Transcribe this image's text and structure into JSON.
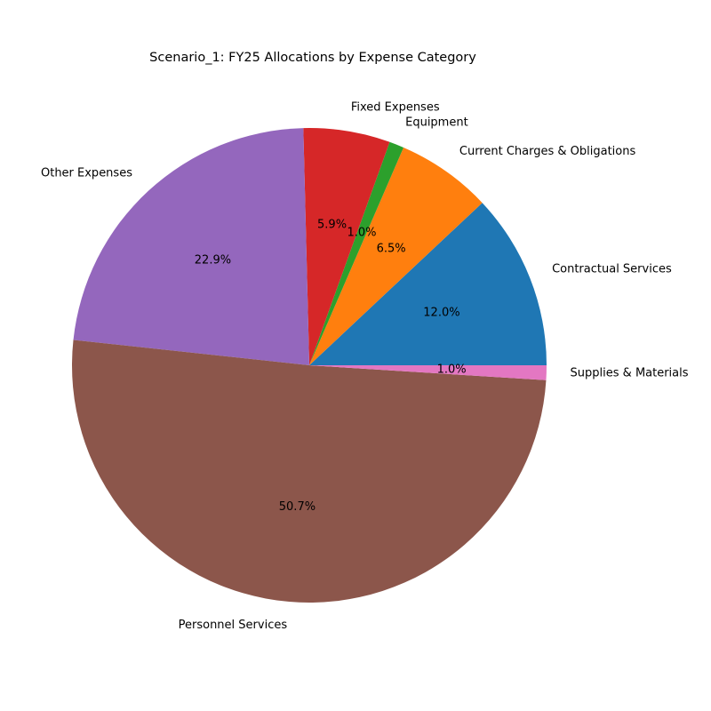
{
  "chart_data": {
    "type": "pie",
    "title": "Scenario_1: FY25 Allocations by Expense Category",
    "slices": [
      {
        "label": "Contractual Services",
        "value": 12.0,
        "pct_label": "12.0%",
        "color": "#1f77b4"
      },
      {
        "label": "Current Charges & Obligations",
        "value": 6.5,
        "pct_label": "6.5%",
        "color": "#ff7f0e"
      },
      {
        "label": "Equipment",
        "value": 1.0,
        "pct_label": "1.0%",
        "color": "#2ca02c"
      },
      {
        "label": "Fixed Expenses",
        "value": 5.9,
        "pct_label": "5.9%",
        "color": "#d62728"
      },
      {
        "label": "Other Expenses",
        "value": 22.9,
        "pct_label": "22.9%",
        "color": "#9467bd"
      },
      {
        "label": "Personnel Services",
        "value": 50.7,
        "pct_label": "50.7%",
        "color": "#8c564b"
      },
      {
        "label": "Supplies & Materials",
        "value": 1.0,
        "pct_label": "1.0%",
        "color": "#e377c2"
      }
    ],
    "start_angle": "0 (3 o'clock)",
    "direction": "counterclockwise",
    "legend": "none"
  }
}
